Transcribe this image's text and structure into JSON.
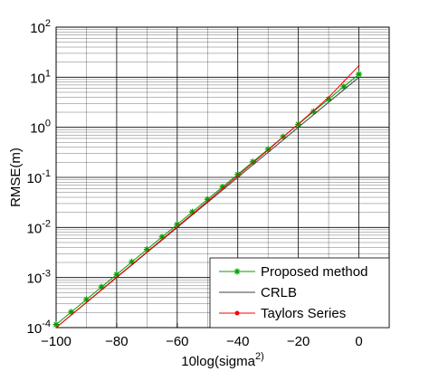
{
  "chart_data": {
    "type": "line",
    "xlabel": "10log(sigma^2)",
    "ylabel": "RMSE(m)",
    "x": [
      -100,
      -95,
      -90,
      -85,
      -80,
      -75,
      -70,
      -65,
      -60,
      -55,
      -50,
      -45,
      -40,
      -35,
      -30,
      -25,
      -20,
      -15,
      -10,
      -5,
      0
    ],
    "series": [
      {
        "name": "Proposed method",
        "color": "#00a000",
        "marker": "*",
        "values": [
          0.000115,
          0.000205,
          0.000364,
          0.000647,
          0.00115,
          0.00205,
          0.00364,
          0.00647,
          0.0115,
          0.0205,
          0.0364,
          0.0647,
          0.115,
          0.205,
          0.364,
          0.647,
          1.15,
          2.05,
          3.64,
          6.47,
          11.5
        ]
      },
      {
        "name": "CRLB",
        "color": "#404040",
        "marker": "none",
        "values": [
          0.0001,
          0.000178,
          0.000316,
          0.000562,
          0.001,
          0.00178,
          0.00316,
          0.00562,
          0.01,
          0.0178,
          0.0316,
          0.0562,
          0.1,
          0.178,
          0.316,
          0.562,
          1,
          1.78,
          3.16,
          5.62,
          10
        ]
      },
      {
        "name": "Taylors Series",
        "color": "#ff0000",
        "marker": ".",
        "values": [
          0.0001,
          0.00018,
          0.00032,
          0.00057,
          0.00102,
          0.00182,
          0.00325,
          0.0058,
          0.0104,
          0.0186,
          0.0333,
          0.06,
          0.108,
          0.195,
          0.35,
          0.64,
          1.17,
          2.15,
          3.95,
          8.2,
          17
        ]
      }
    ],
    "xlim": [
      -100,
      10
    ],
    "xticks": [
      -100,
      -80,
      -60,
      -40,
      -20,
      0
    ],
    "ylim": [
      0.0001,
      100
    ],
    "ylog": true,
    "yticks": [
      {
        "value": 0.0001,
        "label": "10^-4"
      },
      {
        "value": 0.001,
        "label": "10^-3"
      },
      {
        "value": 0.01,
        "label": "10^-2"
      },
      {
        "value": 0.1,
        "label": "10^-1"
      },
      {
        "value": 1,
        "label": "10^0"
      },
      {
        "value": 10,
        "label": "10^1"
      },
      {
        "value": 100,
        "label": "10^2"
      }
    ],
    "grid": true,
    "minor_grid": true,
    "legend_loc": "lower right"
  }
}
